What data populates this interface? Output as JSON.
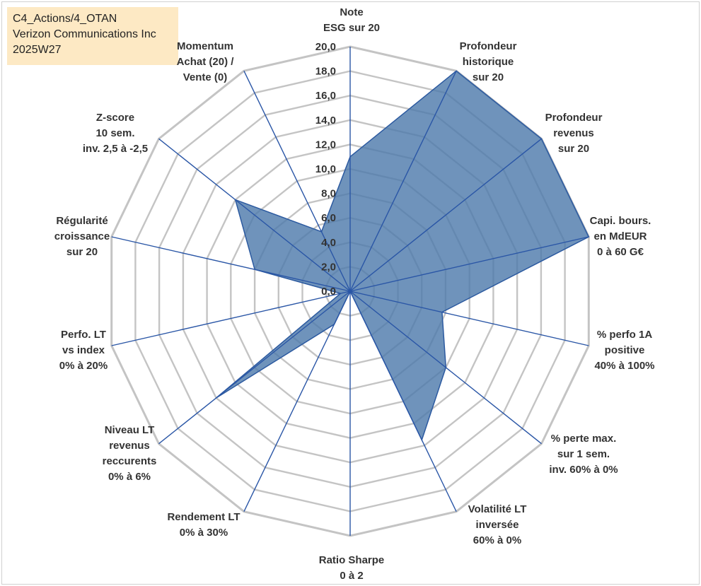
{
  "info": {
    "line1": "C4_Actions/4_OTAN",
    "line2": "Verizon Communications Inc",
    "line3": "2025W27"
  },
  "chart_data": {
    "type": "radar",
    "rmin": 0,
    "rmax": 20,
    "tick_step": 2,
    "tick_labels": [
      "0,0",
      "2,0",
      "4,0",
      "6,0",
      "8,0",
      "10,0",
      "12,0",
      "14,0",
      "16,0",
      "18,0",
      "20,0"
    ],
    "grid": true,
    "colors": {
      "fill": "#4f7bac",
      "stroke": "#2c5aa0",
      "axis": "#2a56a6",
      "grid": "#c4c4c4"
    },
    "axes": [
      {
        "label": [
          "Note",
          "ESG sur 20"
        ],
        "value": 11.0
      },
      {
        "label": [
          "Profondeur",
          "historique",
          "sur 20"
        ],
        "value": 20.0
      },
      {
        "label": [
          "Profondeur",
          "revenus",
          "sur 20"
        ],
        "value": 20.0
      },
      {
        "label": [
          "Capi. bours.",
          "en MdEUR",
          "0 à 60 G€"
        ],
        "value": 20.0
      },
      {
        "label": [
          "% perfo 1A",
          "positive",
          "40% à 100%"
        ],
        "value": 7.7
      },
      {
        "label": [
          "% perte max.",
          "sur 1 sem.",
          "inv. 60% à 0%"
        ],
        "value": 10.0
      },
      {
        "label": [
          "Volatilité LT",
          "inversée",
          "60% à 0%"
        ],
        "value": 13.5
      },
      {
        "label": [
          "Ratio Sharpe",
          "0 à 2"
        ],
        "value": 0.0
      },
      {
        "label": [
          "Rendement LT",
          "0% à 30%"
        ],
        "value": 3.0
      },
      {
        "label": [
          "Niveau LT",
          "revenus",
          "reccurents",
          "0% à 6%"
        ],
        "value": 14.0
      },
      {
        "label": [
          "Perfo. LT",
          "vs index",
          "0% à 20%"
        ],
        "value": 0.8
      },
      {
        "label": [
          "Régularité",
          "croissance",
          "sur 20"
        ],
        "value": 8.0
      },
      {
        "label": [
          "Z-score",
          "10 sem.",
          "inv. 2,5 à -2,5"
        ],
        "value": 12.0
      },
      {
        "label": [
          "Momentum",
          "Achat (20) /",
          "Vente (0)"
        ],
        "value": 5.4
      }
    ]
  }
}
